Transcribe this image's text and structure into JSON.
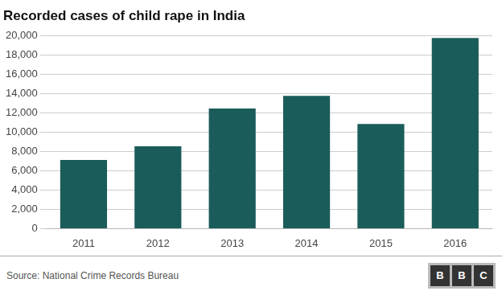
{
  "chart_data": {
    "type": "bar",
    "title": "Recorded cases of child rape in India",
    "categories": [
      "2011",
      "2012",
      "2013",
      "2014",
      "2015",
      "2016"
    ],
    "values": [
      7112,
      8541,
      12447,
      13766,
      10854,
      19765
    ],
    "color": "#1a5c5a",
    "ylim": [
      0,
      20000
    ],
    "yticks": [
      0,
      {
        "value": 2000,
        "label": "2,000"
      },
      {
        "value": 4000,
        "label": "4,000"
      },
      {
        "value": 6000,
        "label": "6,000"
      },
      {
        "value": 8000,
        "label": "8,000"
      },
      {
        "value": 10000,
        "label": "10,000"
      },
      {
        "value": 12000,
        "label": "12,000"
      },
      {
        "value": 14000,
        "label": "14,000"
      },
      {
        "value": 16000,
        "label": "16,000"
      },
      {
        "value": 18000,
        "label": "18,000"
      },
      {
        "value": 20000,
        "label": "20,000"
      }
    ],
    "grid": true,
    "annotations": [
      "Source: National Crime Records Bureau",
      "BBC"
    ]
  }
}
